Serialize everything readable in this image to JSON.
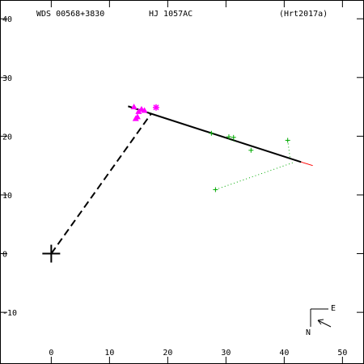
{
  "header": {
    "wds": "WDS 00568+3830",
    "pair": "HJ 1057AC",
    "ref": "(Hrt2017a)"
  },
  "compass": {
    "north": "N",
    "east": "E"
  },
  "chart_data": {
    "type": "scatter",
    "title": "",
    "xlabel": "",
    "ylabel": "",
    "xlim": [
      -8.8,
      53.7
    ],
    "ylim": [
      -18.8,
      43.2
    ],
    "x_ticks": [
      0,
      10,
      20,
      30,
      40,
      50
    ],
    "y_ticks": [
      -10,
      0,
      10,
      20,
      30,
      40
    ],
    "grid": false,
    "primary": {
      "x": 0,
      "y": 0
    },
    "origin_line": {
      "from": [
        0,
        0
      ],
      "to": [
        17.2,
        23.9
      ]
    },
    "orbit_segment": {
      "from": [
        13.2,
        25.1
      ],
      "to": [
        42.9,
        15.6
      ]
    },
    "extension_segment": {
      "from": [
        42.9,
        15.6
      ],
      "to": [
        44.9,
        15.0
      ]
    },
    "series": [
      {
        "marker": "triangle",
        "color": "#ff00ff",
        "points": [
          [
            14.2,
            25.0
          ],
          [
            15.0,
            24.2
          ],
          [
            16.0,
            24.4
          ],
          [
            14.8,
            23.3
          ],
          [
            14.5,
            23.0
          ],
          [
            15.5,
            24.6
          ]
        ]
      },
      {
        "marker": "asterisk",
        "color": "#ff00ff",
        "points": [
          [
            18.0,
            24.9
          ]
        ]
      },
      {
        "marker": "plus",
        "color": "#00aa00",
        "points": [
          [
            27.5,
            20.5
          ],
          [
            30.5,
            19.9
          ],
          [
            31.3,
            19.8
          ],
          [
            34.3,
            17.6
          ],
          [
            40.6,
            19.3
          ],
          [
            28.2,
            10.9
          ]
        ]
      }
    ],
    "residuals": [
      {
        "from": [
          27.5,
          20.5
        ],
        "to": [
          27.7,
          20.2
        ]
      },
      {
        "from": [
          30.5,
          19.9
        ],
        "to": [
          30.9,
          19.2
        ]
      },
      {
        "from": [
          31.3,
          19.8
        ],
        "to": [
          31.4,
          19.1
        ]
      },
      {
        "from": [
          34.3,
          17.6
        ],
        "to": [
          34.6,
          18.0
        ]
      },
      {
        "from": [
          40.6,
          19.3
        ],
        "to": [
          41.0,
          16.3
        ]
      },
      {
        "from": [
          28.2,
          10.9
        ],
        "to": [
          41.8,
          15.6
        ]
      }
    ]
  }
}
